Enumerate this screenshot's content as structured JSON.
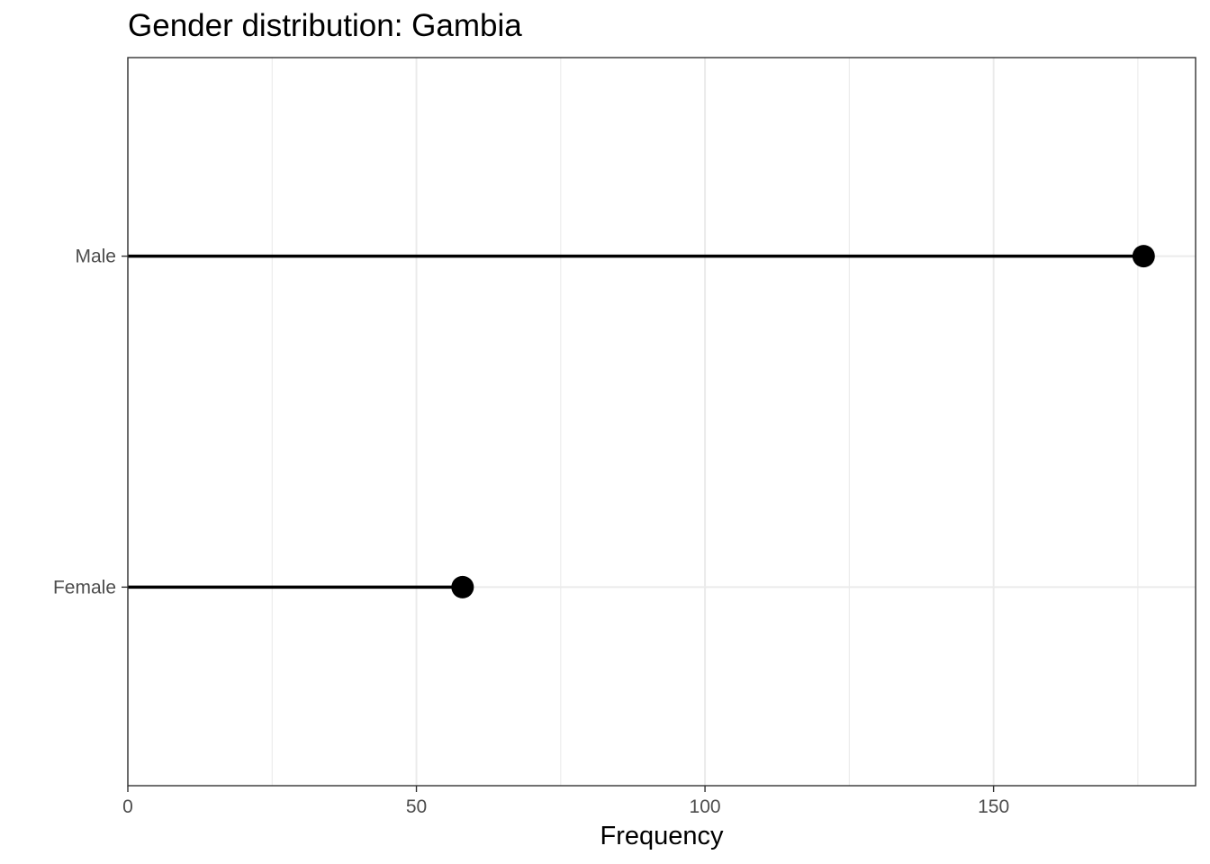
{
  "chart_data": {
    "type": "lollipop",
    "title": "Gender distribution: Gambia",
    "xlabel": "Frequency",
    "ylabel": "",
    "categories": [
      "Female",
      "Male"
    ],
    "values": [
      58,
      176
    ],
    "xlim": [
      0,
      185
    ],
    "x_ticks": [
      0,
      50,
      100,
      150
    ],
    "x_tick_labels": [
      "0",
      "50",
      "100",
      "150"
    ],
    "grid": true,
    "colors": {
      "mark": "#000000",
      "grid": "#ebebeb",
      "panel_border": "#333333",
      "tick_label": "#4d4d4d"
    }
  }
}
